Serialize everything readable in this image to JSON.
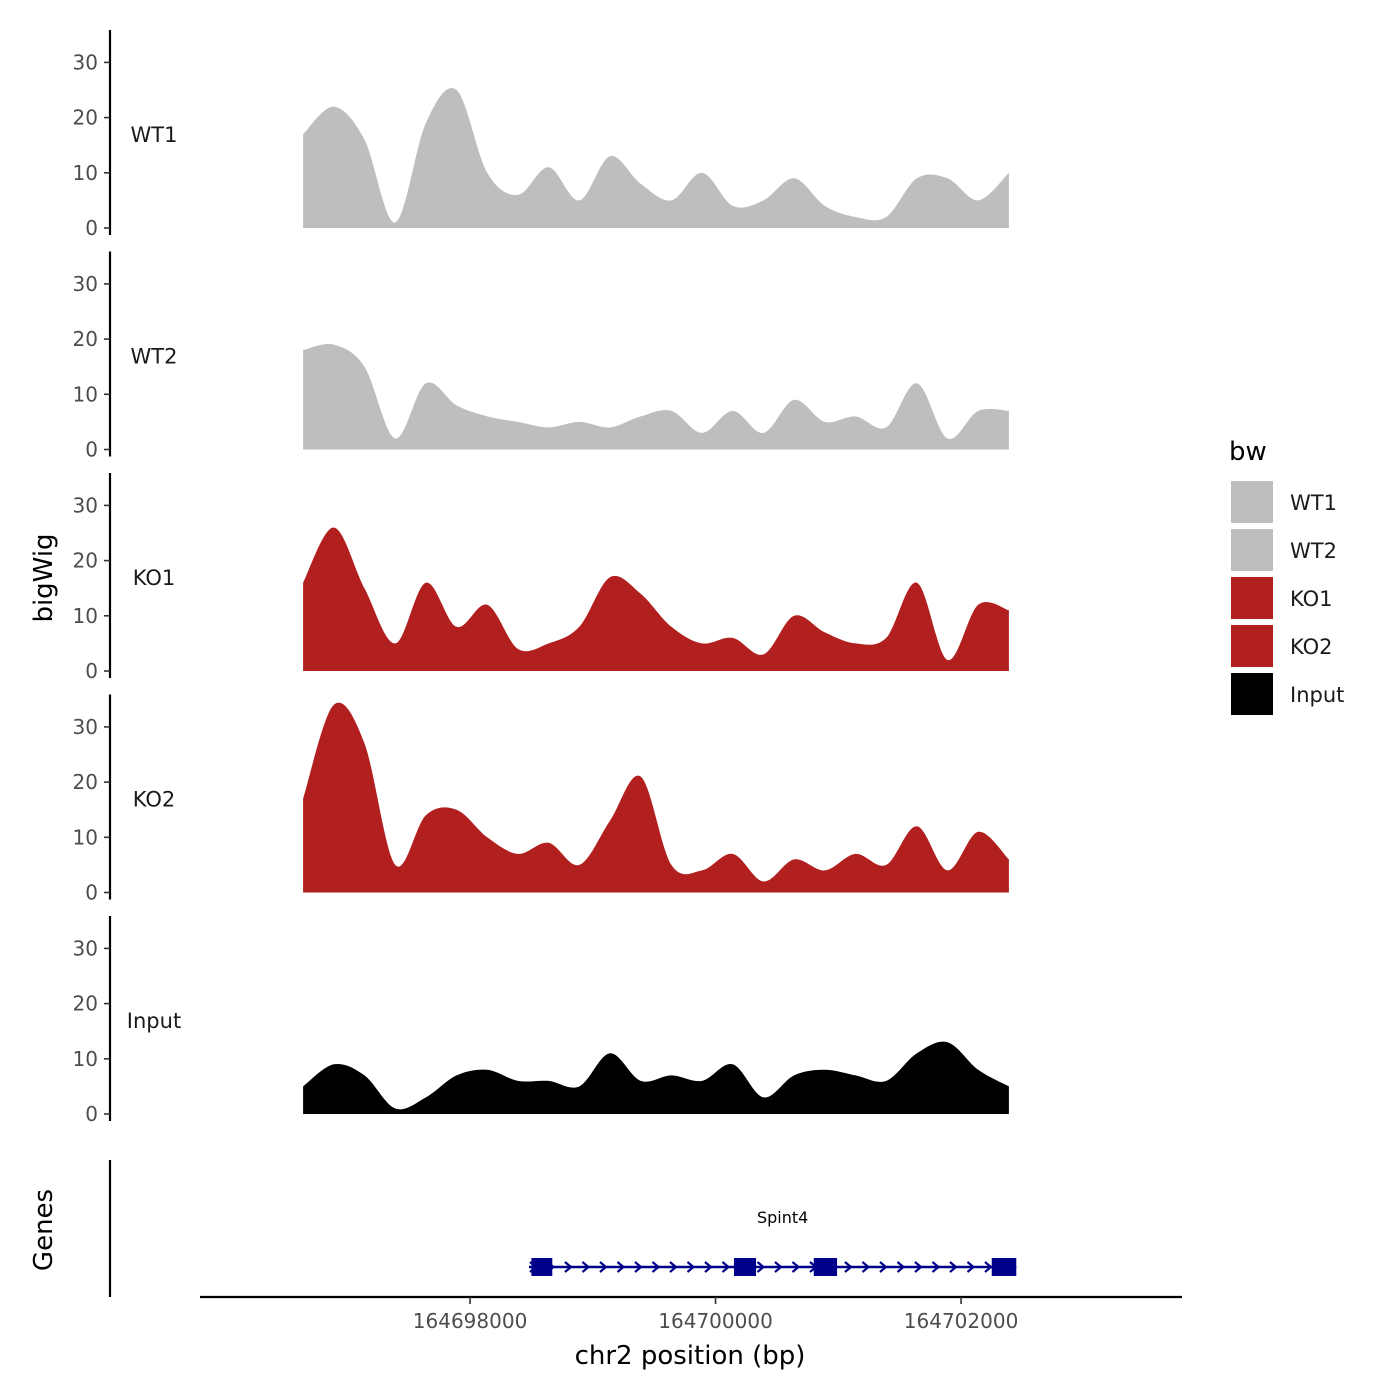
{
  "chart_data": {
    "type": "area",
    "title": "",
    "ylabel": "bigWig",
    "xlabel": "chr2 position (bp)",
    "genes_label": "Genes",
    "xlim": [
      164695800,
      164703800
    ],
    "ylim": [
      0,
      35
    ],
    "yticks": [
      0,
      10,
      20,
      30
    ],
    "xticks": [
      164698000,
      164700000,
      164702000
    ],
    "x": [
      164696640,
      164696890,
      164697140,
      164697390,
      164697640,
      164697890,
      164698140,
      164698390,
      164698640,
      164698890,
      164699140,
      164699390,
      164699640,
      164699890,
      164700140,
      164700390,
      164700640,
      164700890,
      164701140,
      164701390,
      164701640,
      164701890,
      164702140,
      164702390
    ],
    "series": [
      {
        "name": "WT1",
        "color": "#BEBEBE",
        "values": [
          17,
          22,
          16,
          1,
          19,
          25,
          10,
          6,
          11,
          5,
          13,
          8,
          5,
          10,
          4,
          5,
          9,
          4,
          2,
          2,
          9,
          9,
          5,
          10
        ]
      },
      {
        "name": "WT2",
        "color": "#BEBEBE",
        "values": [
          18,
          19,
          15,
          2,
          12,
          8,
          6,
          5,
          4,
          5,
          4,
          6,
          7,
          3,
          7,
          3,
          9,
          5,
          6,
          4,
          12,
          2,
          7,
          7
        ]
      },
      {
        "name": "KO1",
        "color": "#B21F1F",
        "values": [
          16,
          26,
          15,
          5,
          16,
          8,
          12,
          4,
          5,
          8,
          17,
          14,
          8,
          5,
          6,
          3,
          10,
          7,
          5,
          6,
          16,
          2,
          12,
          11
        ]
      },
      {
        "name": "KO2",
        "color": "#B21F1F",
        "values": [
          17,
          34,
          27,
          5,
          14,
          15,
          10,
          7,
          9,
          5,
          13,
          21,
          5,
          4,
          7,
          2,
          6,
          4,
          7,
          5,
          12,
          4,
          11,
          6
        ]
      },
      {
        "name": "Input",
        "color": "#000000",
        "values": [
          5,
          9,
          7,
          1,
          3,
          7,
          8,
          6,
          6,
          5,
          11,
          6,
          7,
          6,
          9,
          3,
          7,
          8,
          7,
          6,
          11,
          13,
          8,
          5
        ]
      }
    ],
    "legend": {
      "title": "bw",
      "position": "right",
      "entries": [
        {
          "label": "WT1",
          "color": "#BEBEBE"
        },
        {
          "label": "WT2",
          "color": "#BEBEBE"
        },
        {
          "label": "KO1",
          "color": "#B21F1F"
        },
        {
          "label": "KO2",
          "color": "#B21F1F"
        },
        {
          "label": "Input",
          "color": "#000000"
        }
      ]
    },
    "gene": {
      "name": "Spint4",
      "color": "#00008B",
      "strand": "+",
      "start": 164698480,
      "end": 164702450,
      "exons": [
        [
          164698500,
          164698670
        ],
        [
          164700150,
          164700330
        ],
        [
          164700800,
          164700990
        ],
        [
          164702250,
          164702450
        ]
      ]
    }
  }
}
